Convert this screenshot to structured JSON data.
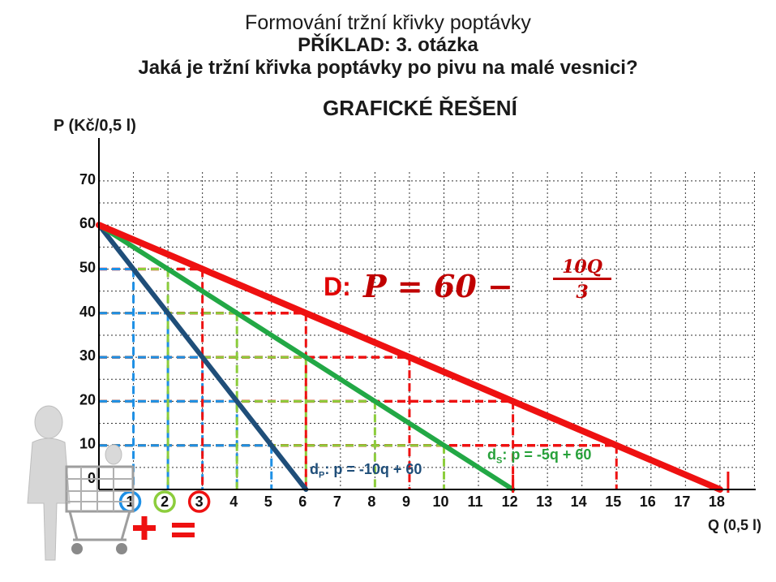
{
  "title": {
    "line1": "Formování tržní křivky poptávky",
    "line2": "PŘÍKLAD: 3. otázka",
    "line3": "Jaká je tržní křivka poptávky po pivu na malé vesnici?",
    "line4": "GRAFICKÉ ŘEŠENÍ"
  },
  "equations": {
    "d_label": "D:",
    "d_formula": "P  = 60 −",
    "d_frac_num": "10Q",
    "d_frac_den": "3",
    "dp_prefix": "d",
    "dp_sub": "P",
    "dp_rest": ": p = -10q + 60",
    "ds_prefix": "d",
    "ds_sub": "S",
    "ds_rest": ": p = -5q + 60"
  },
  "colors": {
    "market_demand": "#ee1111",
    "demand_s": "#22a845",
    "demand_p": "#1f4e79",
    "guide_blue": "#1e90e6",
    "guide_green": "#8ccd3c",
    "guide_red": "#ee1111",
    "grid": "#333333"
  },
  "chart_data": {
    "type": "line",
    "xlabel": "Q (0,5 l)",
    "ylabel": "P (Kč/0,5 l)",
    "x_ticks": [
      "1",
      "2",
      "3",
      "4",
      "5",
      "6",
      "7",
      "8",
      "9",
      "10",
      "11",
      "12",
      "13",
      "14",
      "15",
      "16",
      "17",
      "18"
    ],
    "y_ticks": [
      "0",
      "10",
      "20",
      "30",
      "40",
      "50",
      "60",
      "70"
    ],
    "xlim": [
      0,
      19
    ],
    "ylim": [
      0,
      70
    ],
    "grid": true,
    "series": [
      {
        "key": "dp",
        "x": [
          0,
          6
        ],
        "y": [
          60,
          0
        ]
      },
      {
        "key": "ds",
        "x": [
          0,
          12
        ],
        "y": [
          60,
          0
        ]
      },
      {
        "key": "D",
        "x": [
          0,
          18
        ],
        "y": [
          60,
          0
        ]
      }
    ],
    "guides": {
      "prices": [
        50,
        40,
        30,
        20,
        10
      ],
      "dp_q": [
        1,
        2,
        3,
        4,
        5
      ],
      "ds_q": [
        2,
        4,
        6,
        8,
        10
      ],
      "D_q": [
        3,
        6,
        9,
        12,
        15
      ]
    },
    "circled_ticks": [
      "1",
      "2",
      "3"
    ]
  },
  "operators": {
    "plus": "+",
    "equals": "="
  }
}
